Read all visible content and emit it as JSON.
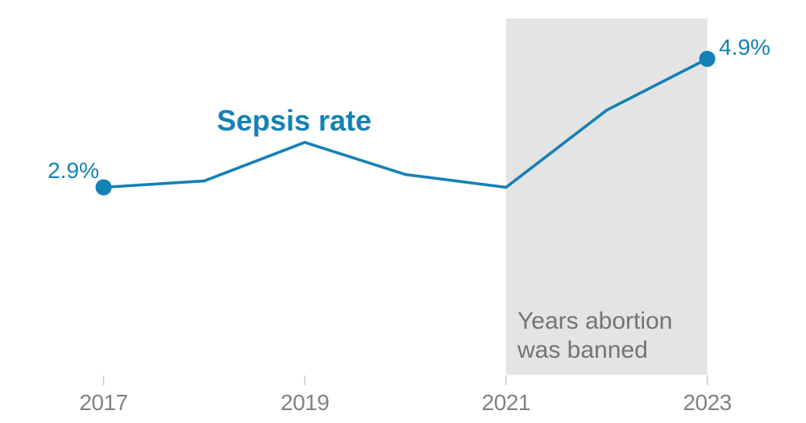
{
  "chart": {
    "title": "Sepsis rate",
    "start_value_label": "2.9%",
    "end_value_label": "4.9%",
    "band_label_lines": [
      "Years abortion",
      "was banned"
    ],
    "colors": {
      "line": "#1581b5",
      "marker": "#1581b5",
      "band": "#e4e4e4",
      "axis_label": "#828282",
      "band_label": "#747474",
      "tick": "#cbcbcb",
      "background": "#ffffff"
    }
  },
  "chart_data": {
    "type": "line",
    "title": "Sepsis rate",
    "x": [
      2017,
      2018,
      2019,
      2020,
      2021,
      2022,
      2023
    ],
    "series": [
      {
        "name": "Sepsis rate",
        "values": [
          2.9,
          3.0,
          3.6,
          3.1,
          2.9,
          4.1,
          4.9
        ]
      }
    ],
    "value_format": "percent",
    "labeled_points": [
      {
        "x": 2017,
        "label": "2.9%"
      },
      {
        "x": 2023,
        "label": "4.9%"
      }
    ],
    "marker_points": [
      2017,
      2023
    ],
    "x_tick_labels": [
      "2017",
      "2019",
      "2021",
      "2023"
    ],
    "xlim": [
      2017,
      2023
    ],
    "grid": false,
    "legend": "none",
    "annotations": [
      {
        "type": "shaded-band",
        "text": "Years abortion was banned",
        "x_start": 2021,
        "x_end": 2023
      }
    ]
  }
}
